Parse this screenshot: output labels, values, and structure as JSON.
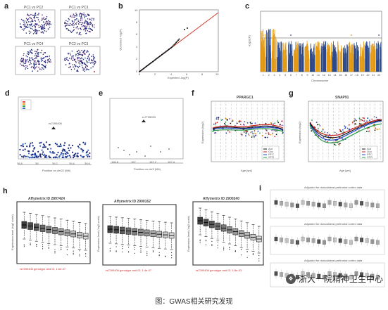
{
  "figure": {
    "caption": "图：GWAS相关研究发现",
    "watermark": "浙大一院精神卫生中心",
    "panel_labels": [
      "a",
      "b",
      "c",
      "d",
      "e",
      "f",
      "g",
      "h",
      "i"
    ]
  },
  "panel_a": {
    "subplot_titles": [
      "PC1 vs PC2",
      "PC1 vs PC3",
      "PC1 vs PC4",
      "PC2 vs PC3"
    ]
  },
  "panel_b": {
    "xlabel": "Expected -log(P)",
    "ylabel": "Observed -log(P)",
    "x_ticks": [
      "0",
      "2",
      "4",
      "6",
      "8",
      "10"
    ],
    "y_ticks": [
      "0",
      "2",
      "4",
      "6",
      "8",
      "10"
    ]
  },
  "panel_c": {
    "xlabel": "Chromosome",
    "ylabel": "-log10(P)",
    "chromosomes": [
      "1",
      "2",
      "3",
      "4",
      "5",
      "6",
      "7",
      "8",
      "9",
      "10",
      "11",
      "12",
      "13",
      "14",
      "15",
      "16",
      "17",
      "18",
      "19",
      "20",
      "21",
      "22"
    ],
    "colors": {
      "odd": "#e39a16",
      "even": "#2c4a8a",
      "threshold": "#444444"
    }
  },
  "panel_d": {
    "snp": "rs7290406",
    "xlabel": "Position on chr22 (Mb)",
    "x_ticks": [
      "38.8",
      "39",
      "39.2",
      "39.4",
      "39.6"
    ]
  },
  "panel_e": {
    "snp": "rs7735093",
    "xlabel": "Position on chr5 (Mb)",
    "x_ticks": [
      "166.8",
      "167",
      "167.2",
      "167.4"
    ]
  },
  "panel_f": {
    "title": "PPARGC1",
    "xlabel": "Age [yrs]",
    "ylabel": "Expression (log2)",
    "legend": [
      "Aut",
      "Occ",
      "PFC",
      "STR"
    ]
  },
  "panel_g": {
    "title": "SNAP91",
    "xlabel": "Age [yrs]",
    "ylabel": "Expression (log2)",
    "legend": [
      "Aut",
      "Occ",
      "PFC",
      "STR"
    ]
  },
  "panel_h": {
    "subplot_titles": [
      "Affymetrix ID 2897424",
      "Affymetrix ID 2900162",
      "Affymetrix ID 2900240"
    ],
    "ylabel": "Expression level (log2 scale)",
    "footnotes": [
      "rs7290406 genotype and ID, 1.6e-07",
      "rs7290406 genotype and ID, 1.4e-07",
      "rs7290406 genotype and ID, 1.8e-03"
    ]
  },
  "panel_i": {
    "row_titles": [
      "Adjusted for dorsolateral prefrontal cortex data",
      "Adjusted for dorsolateral prefrontal cortex data",
      "Adjusted for dorsolateral prefrontal cortex data"
    ]
  },
  "colors": {
    "scatter_blue": "#1a2a7a",
    "scatter_purple": "#5a2f7a",
    "qq_red": "#d23a2a",
    "line_red": "#cc2222",
    "line_blue": "#2244cc",
    "line_green": "#229944",
    "line_black": "#111111"
  }
}
